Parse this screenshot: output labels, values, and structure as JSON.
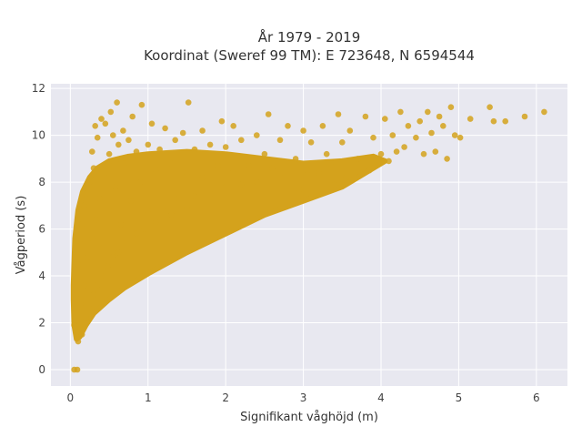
{
  "chart_data": {
    "type": "scatter",
    "title_line1": "År 1979 - 2019",
    "title_line2": "Koordinat (Sweref 99 TM): E 723648, N 6594544",
    "xlabel": "Signifikant våghöjd (m)",
    "ylabel": "Vågperiod (s)",
    "xlim": [
      -0.25,
      6.4
    ],
    "ylim": [
      -0.7,
      12.2
    ],
    "x_ticks": [
      0,
      1,
      2,
      3,
      4,
      5,
      6
    ],
    "y_ticks": [
      0,
      2,
      4,
      6,
      8,
      10,
      12
    ],
    "grid": true,
    "legend": "none",
    "colors": {
      "marker": "#d4a21c",
      "plot_bg": "#e8e8f0",
      "grid": "#ffffff"
    },
    "series": [
      {
        "points": [
          [
            0.05,
            0.0
          ],
          [
            0.09,
            0.0
          ],
          [
            0.05,
            1.9
          ],
          [
            0.06,
            2.6
          ],
          [
            0.08,
            3.2
          ],
          [
            0.08,
            1.6
          ],
          [
            0.1,
            1.2
          ],
          [
            0.1,
            4.5
          ],
          [
            0.12,
            5.5
          ],
          [
            0.13,
            2.8
          ],
          [
            0.15,
            6.2
          ],
          [
            0.15,
            1.5
          ],
          [
            0.18,
            7.0
          ],
          [
            0.18,
            3.6
          ],
          [
            0.2,
            2.2
          ],
          [
            0.2,
            7.5
          ],
          [
            0.22,
            4.8
          ],
          [
            0.25,
            8.0
          ],
          [
            0.25,
            2.8
          ],
          [
            0.28,
            5.6
          ],
          [
            0.28,
            9.3
          ],
          [
            0.3,
            8.6
          ],
          [
            0.3,
            3.2
          ],
          [
            0.32,
            10.4
          ],
          [
            0.33,
            6.4
          ],
          [
            0.35,
            9.9
          ],
          [
            0.35,
            3.6
          ],
          [
            0.38,
            7.3
          ],
          [
            0.4,
            10.7
          ],
          [
            0.4,
            4.0
          ],
          [
            0.42,
            5.2
          ],
          [
            0.45,
            8.4
          ],
          [
            0.45,
            10.5
          ],
          [
            0.48,
            4.4
          ],
          [
            0.5,
            9.2
          ],
          [
            0.5,
            6.8
          ],
          [
            0.52,
            11.0
          ],
          [
            0.55,
            4.8
          ],
          [
            0.55,
            10.0
          ],
          [
            0.58,
            7.8
          ],
          [
            0.6,
            11.4
          ],
          [
            0.62,
            5.0
          ],
          [
            0.62,
            9.6
          ],
          [
            0.65,
            6.2
          ],
          [
            0.68,
            10.2
          ],
          [
            0.7,
            8.8
          ],
          [
            0.72,
            5.4
          ],
          [
            0.75,
            9.8
          ],
          [
            0.78,
            7.2
          ],
          [
            0.8,
            10.8
          ],
          [
            0.85,
            5.8
          ],
          [
            0.85,
            9.3
          ],
          [
            0.9,
            8.0
          ],
          [
            0.92,
            11.3
          ],
          [
            0.95,
            6.0
          ],
          [
            1.0,
            9.6
          ],
          [
            1.0,
            6.8
          ],
          [
            1.05,
            10.5
          ],
          [
            1.1,
            8.5
          ],
          [
            1.1,
            6.3
          ],
          [
            1.15,
            9.4
          ],
          [
            1.2,
            7.0
          ],
          [
            1.22,
            10.3
          ],
          [
            1.3,
            8.8
          ],
          [
            1.3,
            6.6
          ],
          [
            1.35,
            9.8
          ],
          [
            1.4,
            7.3
          ],
          [
            1.45,
            10.1
          ],
          [
            1.5,
            8.4
          ],
          [
            1.5,
            6.9
          ],
          [
            1.52,
            11.4
          ],
          [
            1.6,
            9.4
          ],
          [
            1.6,
            7.4
          ],
          [
            1.7,
            8.2
          ],
          [
            1.7,
            10.2
          ],
          [
            1.8,
            7.5
          ],
          [
            1.8,
            9.6
          ],
          [
            1.9,
            8.7
          ],
          [
            1.95,
            10.6
          ],
          [
            2.0,
            7.8
          ],
          [
            2.0,
            9.5
          ],
          [
            2.1,
            8.5
          ],
          [
            2.1,
            10.4
          ],
          [
            2.2,
            7.9
          ],
          [
            2.2,
            9.8
          ],
          [
            2.3,
            8.7
          ],
          [
            2.4,
            10.0
          ],
          [
            2.4,
            8.0
          ],
          [
            2.5,
            9.2
          ],
          [
            2.55,
            10.9
          ],
          [
            2.6,
            8.6
          ],
          [
            2.7,
            9.8
          ],
          [
            2.75,
            8.4
          ],
          [
            2.8,
            10.4
          ],
          [
            2.9,
            9.0
          ],
          [
            2.95,
            7.7
          ],
          [
            3.0,
            10.2
          ],
          [
            3.05,
            8.5
          ],
          [
            3.1,
            9.7
          ],
          [
            3.2,
            8.4
          ],
          [
            3.25,
            10.4
          ],
          [
            3.3,
            9.2
          ],
          [
            3.4,
            7.9
          ],
          [
            3.45,
            10.9
          ],
          [
            3.5,
            9.7
          ],
          [
            3.55,
            8.2
          ],
          [
            3.6,
            10.2
          ],
          [
            3.7,
            9.0
          ],
          [
            3.8,
            10.8
          ],
          [
            3.85,
            8.5
          ],
          [
            3.9,
            9.9
          ],
          [
            4.0,
            9.2
          ],
          [
            4.05,
            10.7
          ],
          [
            4.1,
            8.9
          ],
          [
            4.15,
            10.0
          ],
          [
            4.2,
            9.3
          ],
          [
            4.25,
            11.0
          ],
          [
            4.3,
            9.5
          ],
          [
            4.35,
            10.4
          ],
          [
            4.45,
            9.9
          ],
          [
            4.5,
            10.6
          ],
          [
            4.55,
            9.2
          ],
          [
            4.6,
            11.0
          ],
          [
            4.65,
            10.1
          ],
          [
            4.7,
            9.3
          ],
          [
            4.75,
            10.8
          ],
          [
            4.8,
            10.4
          ],
          [
            4.85,
            9.0
          ],
          [
            4.9,
            11.2
          ],
          [
            4.95,
            10.0
          ],
          [
            5.02,
            9.9
          ],
          [
            5.15,
            10.7
          ],
          [
            5.4,
            11.2
          ],
          [
            5.45,
            10.6
          ],
          [
            5.6,
            10.6
          ],
          [
            5.85,
            10.8
          ],
          [
            6.1,
            11.0
          ]
        ]
      }
    ]
  }
}
